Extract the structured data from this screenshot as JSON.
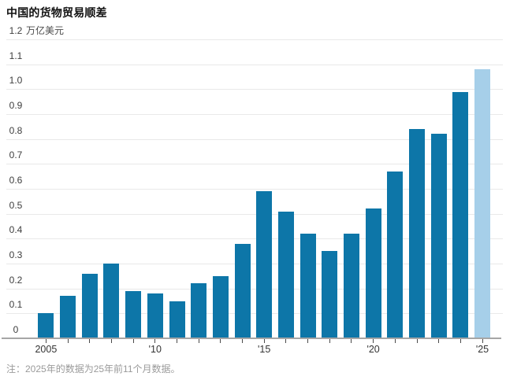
{
  "title": "中国的货物贸易顺差",
  "unit_label": "万亿美元",
  "note": "注：2025年的数据为25年前11个月数据。",
  "chart_data": {
    "type": "bar",
    "title": "中国的货物贸易顺差",
    "ylabel": "万亿美元",
    "categories": [
      2005,
      2006,
      2007,
      2008,
      2009,
      2010,
      2011,
      2012,
      2013,
      2014,
      2015,
      2016,
      2017,
      2018,
      2019,
      2020,
      2021,
      2022,
      2023,
      2024,
      2025
    ],
    "values": [
      0.1,
      0.17,
      0.26,
      0.3,
      0.19,
      0.18,
      0.15,
      0.22,
      0.25,
      0.38,
      0.59,
      0.51,
      0.42,
      0.35,
      0.42,
      0.52,
      0.67,
      0.84,
      0.82,
      0.99,
      1.08
    ],
    "highlight_category": 2025,
    "highlight_note": "2025年的数据为25年前11个月数据",
    "ylim": [
      0,
      1.2
    ],
    "ytick_step": 0.1,
    "ytick_labels": [
      "0",
      "0.1",
      "0.2",
      "0.3",
      "0.4",
      "0.5",
      "0.6",
      "0.7",
      "0.8",
      "0.9",
      "1.0",
      "1.1",
      "1.2"
    ],
    "xticks": [
      {
        "index": 0,
        "label": "2005"
      },
      {
        "index": 5,
        "label": "'10"
      },
      {
        "index": 10,
        "label": "'15"
      },
      {
        "index": 15,
        "label": "'20"
      },
      {
        "index": 20,
        "label": "'25"
      }
    ],
    "grid": true,
    "legend": "none",
    "colors": {
      "bar": "#0d76a8",
      "highlight": "#a6cfe9",
      "gridline": "#e9e9e9",
      "axis": "#a6a6a6",
      "tick": "#4a4a4a",
      "title_text": "#111111",
      "axis_text": "#3d3d3d",
      "note_text": "#9a9a9a"
    }
  }
}
